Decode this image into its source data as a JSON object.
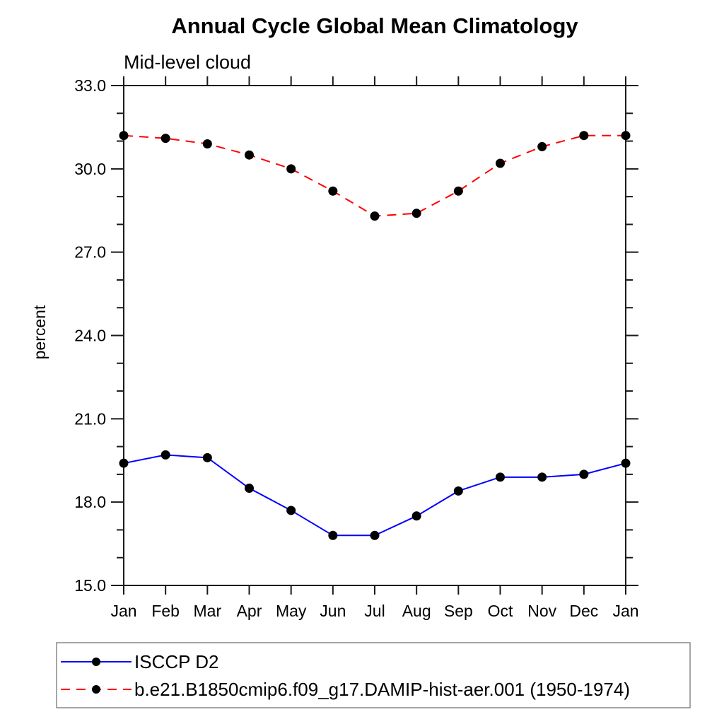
{
  "title": "Annual Cycle Global Mean Climatology",
  "subtitle": "Mid-level cloud",
  "ylabel": "percent",
  "colors": {
    "axis": "#1a1a1a",
    "marker": "#000000",
    "obs_line": "#0000ff",
    "model_line": "#ff0000",
    "legend_border": "#888888",
    "background": "#ffffff"
  },
  "chart_data": {
    "type": "line",
    "title": "Annual Cycle Global Mean Climatology",
    "subtitle": "Mid-level cloud",
    "xlabel": "",
    "ylabel": "percent",
    "categories": [
      "Jan",
      "Feb",
      "Mar",
      "Apr",
      "May",
      "Jun",
      "Jul",
      "Aug",
      "Sep",
      "Oct",
      "Nov",
      "Dec",
      "Jan"
    ],
    "ylim": [
      15.0,
      33.0
    ],
    "ytick_major": [
      15.0,
      18.0,
      21.0,
      24.0,
      27.0,
      30.0,
      33.0
    ],
    "ytick_minor_step": 1.0,
    "ytick_label_format": "one-decimal",
    "grid": false,
    "legend_position": "bottom-left-box",
    "series": [
      {
        "name": "ISCCP D2",
        "style": "solid",
        "color": "#0000ff",
        "marker": "filled-circle",
        "values": [
          19.4,
          19.7,
          19.6,
          18.5,
          17.7,
          16.8,
          16.8,
          17.5,
          18.4,
          18.9,
          18.9,
          19.0,
          19.4
        ]
      },
      {
        "name": "b.e21.B1850cmip6.f09_g17.DAMIP-hist-aer.001 (1950-1974)",
        "style": "dashed",
        "color": "#ff0000",
        "marker": "filled-circle",
        "values": [
          31.2,
          31.1,
          30.9,
          30.5,
          30.0,
          29.2,
          28.3,
          28.4,
          29.2,
          30.2,
          30.8,
          31.2,
          31.2
        ]
      }
    ]
  }
}
